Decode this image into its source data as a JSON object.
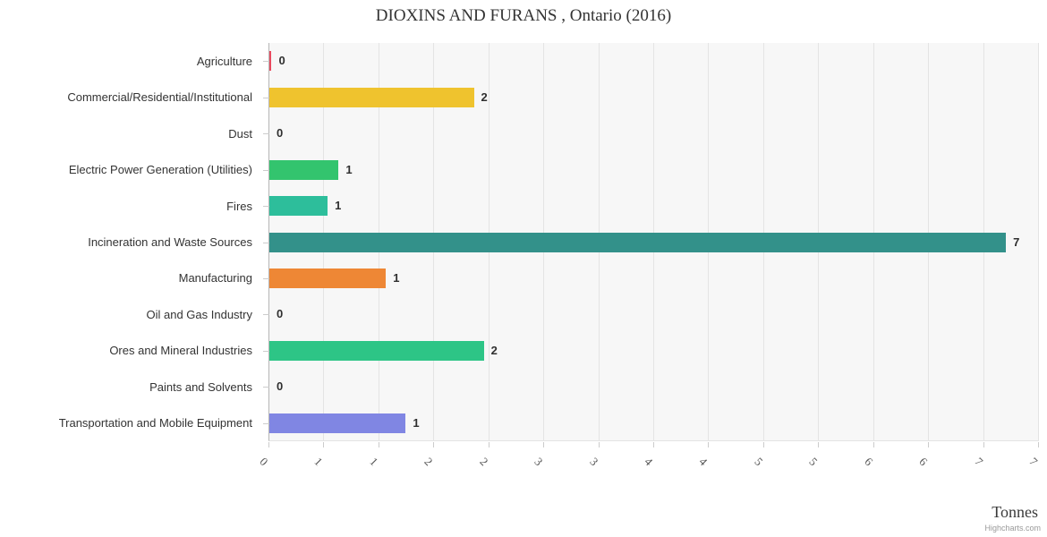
{
  "chart_data": {
    "type": "bar",
    "orientation": "horizontal",
    "title": "DIOXINS AND FURANS , Ontario (2016)",
    "xlabel": "Tonnes",
    "ylabel": "",
    "xlim": [
      0,
      7
    ],
    "grid": true,
    "legend": false,
    "categories": [
      "Agriculture",
      "Commercial/Residential/Institutional",
      "Dust",
      "Electric Power Generation (Utilities)",
      "Fires",
      "Incineration and Waste Sources",
      "Manufacturing",
      "Oil and Gas Industry",
      "Ores and Mineral Industries",
      "Paints and Solvents",
      "Transportation and Mobile Equipment"
    ],
    "values": [
      0.02,
      1.86,
      0,
      0.63,
      0.53,
      6.7,
      1.06,
      0,
      1.95,
      0,
      1.24
    ],
    "value_labels": [
      "0",
      "2",
      "0",
      "1",
      "1",
      "7",
      "1",
      "0",
      "2",
      "0",
      "1"
    ],
    "bar_colors": [
      "#e84a5f",
      "#efc32e",
      null,
      "#33c46e",
      "#2dbe9b",
      "#33918a",
      "#ee8735",
      null,
      "#2dc586",
      null,
      "#8086e3"
    ],
    "ticks": [
      0,
      0.5,
      1,
      1.5,
      2,
      2.5,
      3,
      3.5,
      4,
      4.5,
      5,
      5.5,
      6,
      6.5,
      7
    ],
    "tick_labels": [
      "0",
      "1",
      "1",
      "2",
      "2",
      "3",
      "3",
      "4",
      "4",
      "5",
      "5",
      "6",
      "6",
      "7",
      "7"
    ]
  },
  "credits": "Highcharts.com",
  "colors": {
    "plot_bg": "#f7f7f7",
    "gridline": "#e4e4e4",
    "axis_line": "#b6b6b6",
    "tick": "#cccccc",
    "title_color": "#333333",
    "category_label_color": "#333333",
    "value_label_color": "#2f2f2f",
    "x_tick_label_color": "#555555"
  }
}
